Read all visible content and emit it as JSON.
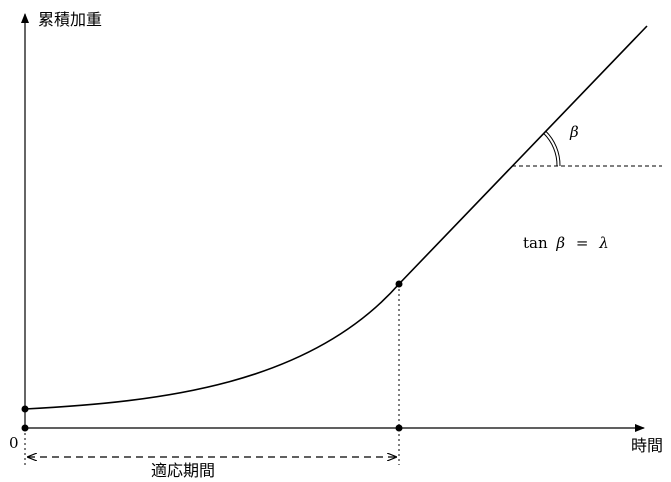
{
  "diagram": {
    "y_axis_label": "累積加重",
    "x_axis_label": "時間",
    "origin_label": "0",
    "adaptation_period_label": "適応期間",
    "angle_label": "β",
    "relation": {
      "fn": "tan",
      "lhs_symbol": "β",
      "equals": "=",
      "rhs_symbol": "λ"
    }
  }
}
